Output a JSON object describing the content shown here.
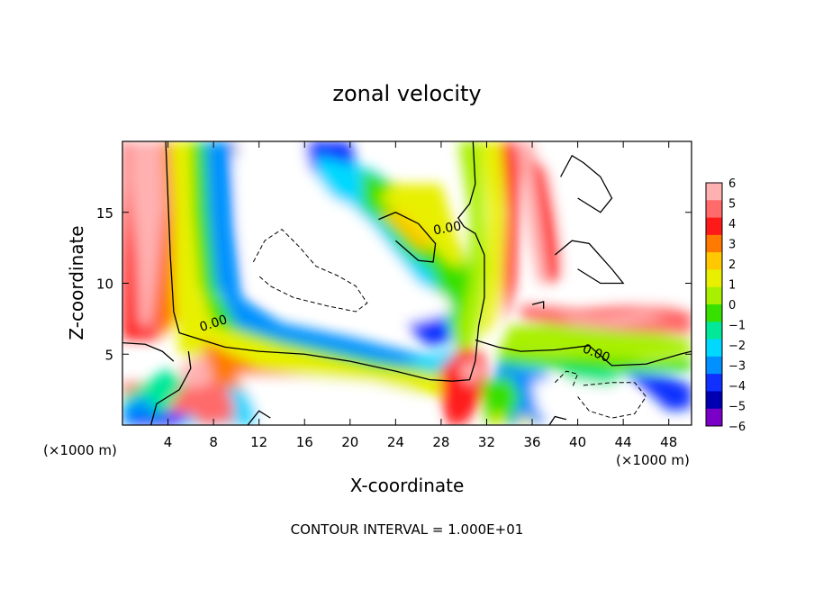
{
  "chart_data": {
    "type": "heatmap",
    "title": "zonal velocity",
    "xlabel": "X-coordinate",
    "ylabel": "Z-coordinate",
    "x_unit_label": "(×1000 m)",
    "x_unit_label_right": "(×1000 m)",
    "footer": "CONTOUR INTERVAL = 1.000E+01",
    "xlim": [
      0,
      50
    ],
    "ylim": [
      0,
      20
    ],
    "x_ticks": [
      "4",
      "8",
      "12",
      "16",
      "20",
      "24",
      "28",
      "32",
      "36",
      "40",
      "44",
      "48"
    ],
    "y_ticks": [
      "5",
      "10",
      "15"
    ],
    "colorbar": {
      "min": -6,
      "max": 6,
      "labels": [
        "6",
        "5",
        "4",
        "3",
        "2",
        "1",
        "0",
        "−1",
        "−2",
        "−3",
        "−4",
        "−5",
        "−6"
      ],
      "colors": [
        "#ffb0b0",
        "#ff6a6a",
        "#ff1a1a",
        "#ff7a00",
        "#ffc800",
        "#e8f000",
        "#a8f000",
        "#38e000",
        "#00e898",
        "#00d8ff",
        "#0090ff",
        "#1030ff",
        "#0000b0",
        "#7a00c8"
      ]
    },
    "contour_labels": [
      "0.00",
      "0.00",
      "0.00"
    ],
    "grid": false,
    "legend": "colorbar right"
  }
}
